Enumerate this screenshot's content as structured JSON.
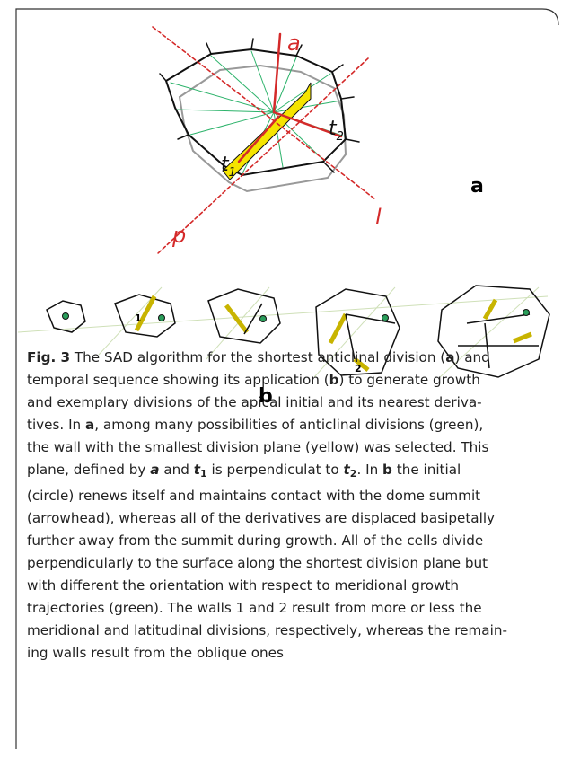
{
  "figure": {
    "panel_a": {
      "axis_a": "a",
      "axis_l": "l",
      "axis_p": "p",
      "t1": "t",
      "t1_sub": "1",
      "t2": "t",
      "t2_sub": "2",
      "label": "a"
    },
    "panel_b": {
      "wall_1": "1",
      "wall_2": "2",
      "label": "b"
    }
  },
  "caption": {
    "lines": [
      [
        "Fig. 3",
        " The SAD algorithm for the shortest anticlinal division (",
        "a",
        ") and"
      ],
      [
        "temporal sequence showing its application (",
        "b",
        ") to generate growth"
      ],
      [
        "and exemplary divisions of the apical initial and its nearest deriva-"
      ],
      [
        "tives. In ",
        "a",
        ", among many possibilities of anticlinal divisions (green),"
      ],
      [
        "the wall with the smallest division plane (yellow) was selected. This"
      ],
      [
        "plane, defined by ",
        "a",
        " and ",
        "t",
        "1",
        " is perpendiculat to ",
        "t",
        "2",
        ". In ",
        "b",
        " the initial"
      ],
      [
        "(circle) renews itself and maintains contact with the dome summit"
      ],
      [
        "(arrowhead), whereas all of the derivatives are displaced basipetally"
      ],
      [
        "further away from the summit during growth. All of the cells divide"
      ],
      [
        "perpendicularly to the surface along the shortest division plane but"
      ],
      [
        "with different the orientation with respect to meridional growth"
      ],
      [
        "trajectories (green). The walls 1 and 2 result from more or less the"
      ],
      [
        "meridional and latitudinal divisions, respectively, whereas the remain-"
      ],
      [
        "ing walls result from the oblique ones"
      ]
    ]
  }
}
